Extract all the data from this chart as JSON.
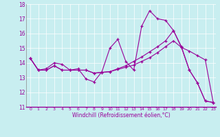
{
  "xlabel": "Windchill (Refroidissement éolien,°C)",
  "bg_color": "#c8eef0",
  "line_color": "#990099",
  "xlim": [
    -0.5,
    23.3
  ],
  "ylim": [
    11,
    18
  ],
  "yticks": [
    11,
    12,
    13,
    14,
    15,
    16,
    17,
    18
  ],
  "xticks": [
    0,
    1,
    2,
    3,
    4,
    5,
    6,
    7,
    8,
    9,
    10,
    11,
    12,
    13,
    14,
    15,
    16,
    17,
    18,
    19,
    20,
    21,
    22,
    23
  ],
  "series": [
    [
      14.3,
      13.5,
      13.6,
      14.0,
      13.9,
      13.5,
      13.6,
      12.9,
      12.7,
      13.4,
      15.0,
      15.6,
      14.1,
      13.5,
      16.5,
      17.55,
      17.0,
      16.9,
      16.2,
      15.1,
      13.5,
      12.65,
      11.4,
      11.3
    ],
    [
      14.3,
      13.5,
      13.5,
      13.8,
      13.5,
      13.5,
      13.5,
      13.5,
      13.3,
      13.35,
      13.4,
      13.55,
      13.7,
      13.85,
      14.1,
      14.35,
      14.7,
      15.1,
      15.5,
      15.05,
      14.8,
      14.5,
      14.2,
      11.3
    ],
    [
      14.3,
      13.5,
      13.5,
      13.8,
      13.5,
      13.5,
      13.5,
      13.5,
      13.3,
      13.35,
      13.4,
      13.6,
      13.8,
      14.1,
      14.4,
      14.75,
      15.1,
      15.5,
      16.2,
      15.05,
      13.5,
      12.65,
      11.4,
      11.3
    ]
  ]
}
